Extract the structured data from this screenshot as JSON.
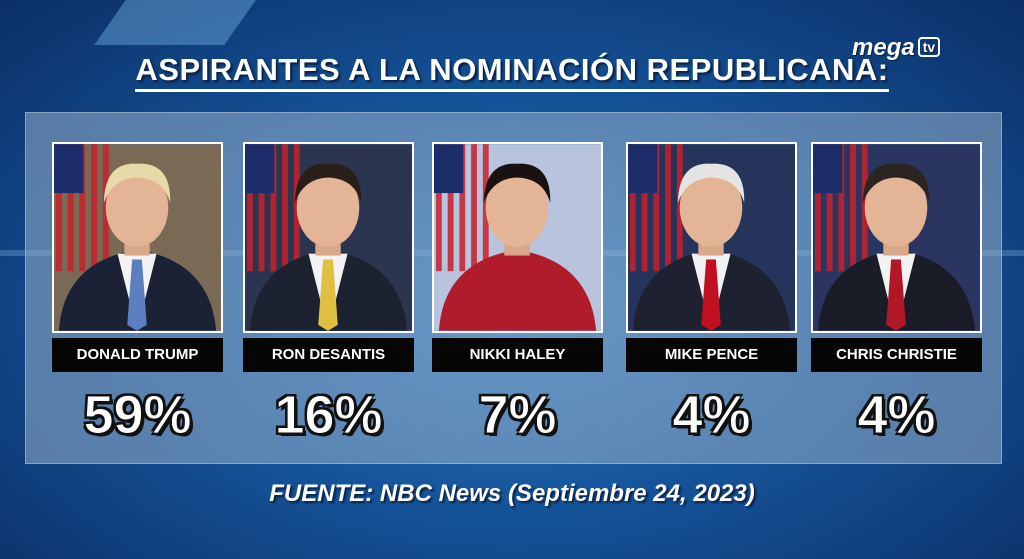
{
  "header": {
    "title": "ASPIRANTES A LA NOMINACIÓN REPUBLICANA:",
    "logo": "mega",
    "logo_badge": "tv"
  },
  "candidates": [
    {
      "name": "DONALD TRUMP",
      "percent": "59%"
    },
    {
      "name": "RON DESANTIS",
      "percent": "16%"
    },
    {
      "name": "NIKKI HALEY",
      "percent": "7%"
    },
    {
      "name": "MIKE PENCE",
      "percent": "4%"
    },
    {
      "name": "CHRIS CHRISTIE",
      "percent": "4%"
    }
  ],
  "footer": {
    "source": "FUENTE: NBC News (Septiembre 24, 2023)"
  }
}
